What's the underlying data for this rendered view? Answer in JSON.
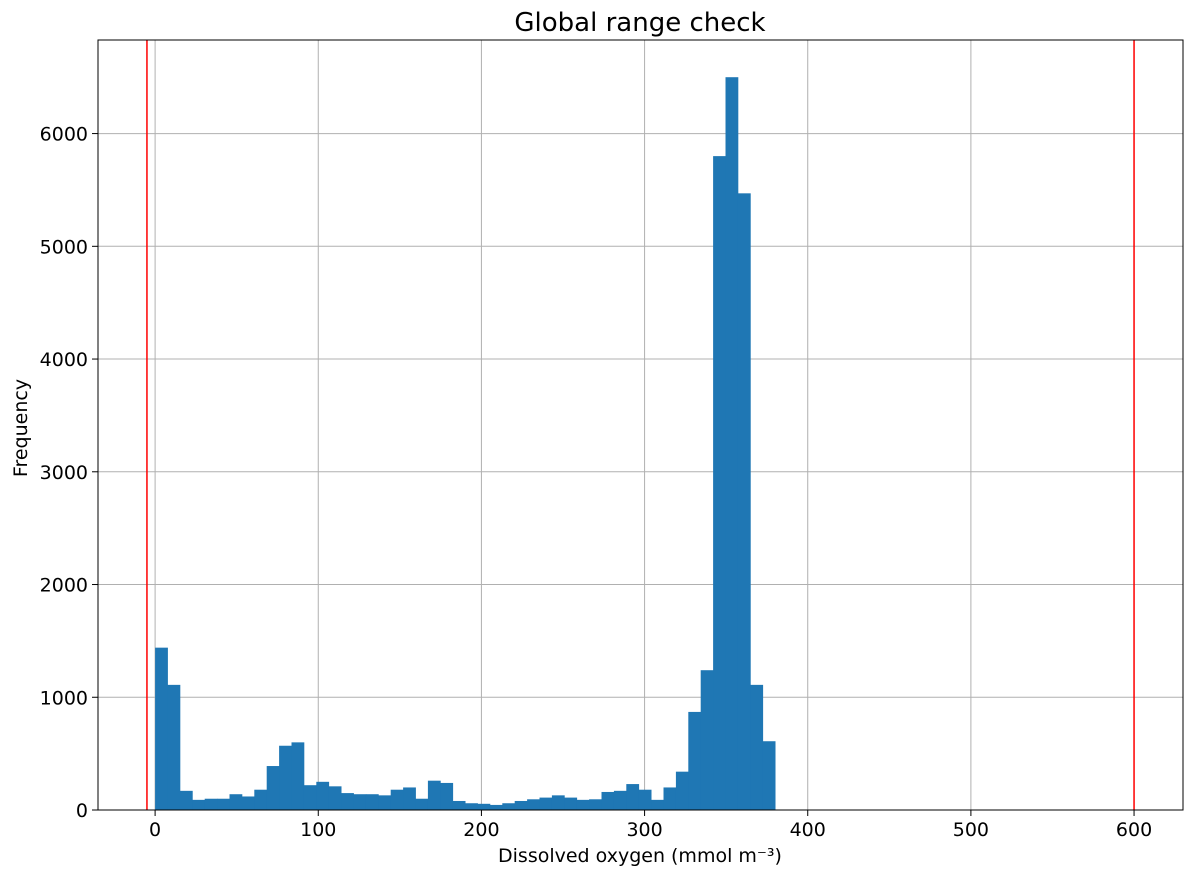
{
  "chart_data": {
    "type": "bar",
    "title": "Global range check",
    "xlabel": "Dissolved oxygen (mmol m⁻³)",
    "ylabel": "Frequency",
    "xlim": [
      -35,
      630
    ],
    "ylim": [
      0,
      6830
    ],
    "xticks": [
      0,
      100,
      200,
      300,
      400,
      500,
      600
    ],
    "yticks": [
      0,
      1000,
      2000,
      3000,
      4000,
      5000,
      6000
    ],
    "grid": true,
    "bar_color": "#1f77b4",
    "reference_lines": {
      "values": [
        -5,
        600
      ],
      "color": "#ff0000"
    },
    "bins": {
      "start": 0,
      "width": 7.6,
      "counts": [
        1440,
        1110,
        170,
        90,
        100,
        100,
        140,
        120,
        180,
        390,
        570,
        600,
        220,
        250,
        210,
        150,
        140,
        140,
        130,
        180,
        200,
        100,
        260,
        240,
        80,
        60,
        55,
        45,
        60,
        80,
        95,
        110,
        130,
        110,
        90,
        95,
        160,
        170,
        230,
        180,
        90,
        200,
        340,
        870,
        1240,
        5800,
        6500,
        5470,
        1110,
        610
      ]
    }
  }
}
